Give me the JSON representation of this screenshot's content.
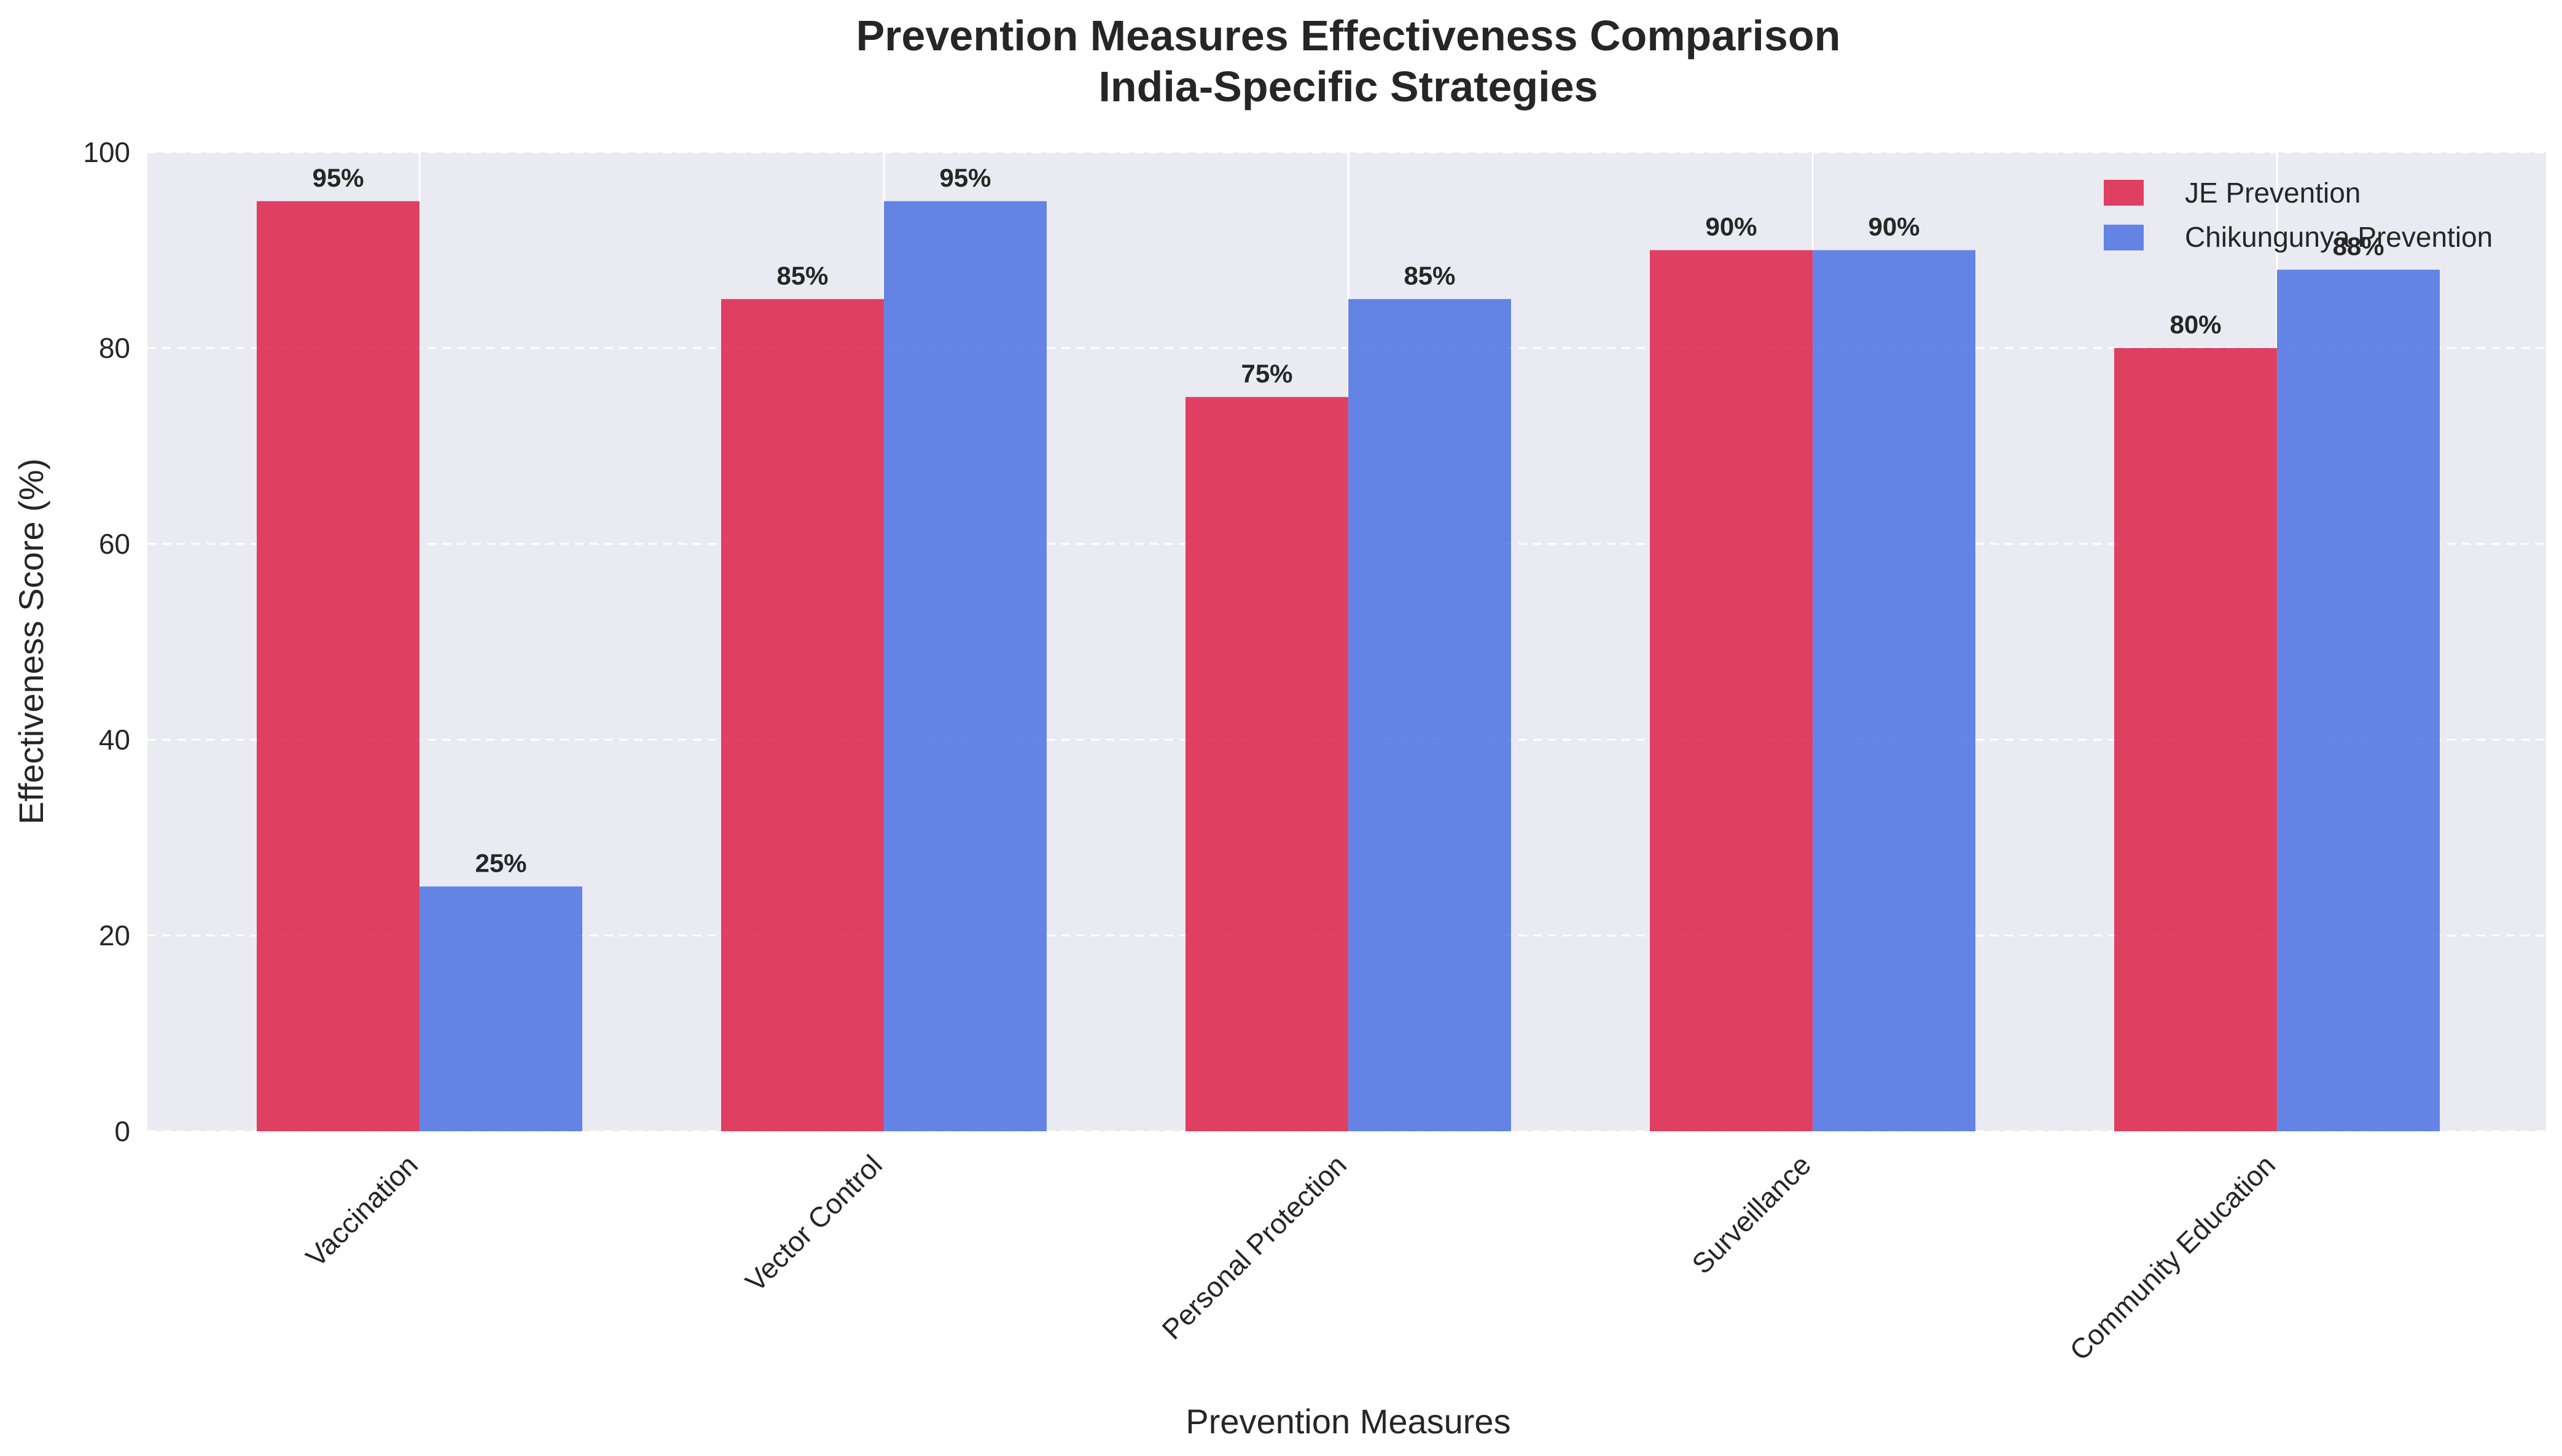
{
  "chart_data": {
    "type": "bar",
    "title": "Prevention Measures Effectiveness Comparison",
    "subtitle": "India-Specific Strategies",
    "xlabel": "Prevention Measures",
    "ylabel": "Effectiveness Score (%)",
    "categories": [
      "Vaccination",
      "Vector Control",
      "Personal Protection",
      "Surveillance",
      "Community Education"
    ],
    "series": [
      {
        "name": "JE Prevention",
        "values": [
          95,
          85,
          75,
          90,
          80
        ],
        "color": "#DC143C"
      },
      {
        "name": "Chikungunya Prevention",
        "values": [
          25,
          95,
          85,
          90,
          88
        ],
        "color": "#4169E1"
      }
    ],
    "ylim": [
      0,
      100
    ],
    "yticks": [
      0,
      20,
      40,
      60,
      80,
      100
    ],
    "value_label_suffix": "%",
    "grid": "y-dashed",
    "legend_position": "top-right",
    "background": "#EAEAF2"
  }
}
